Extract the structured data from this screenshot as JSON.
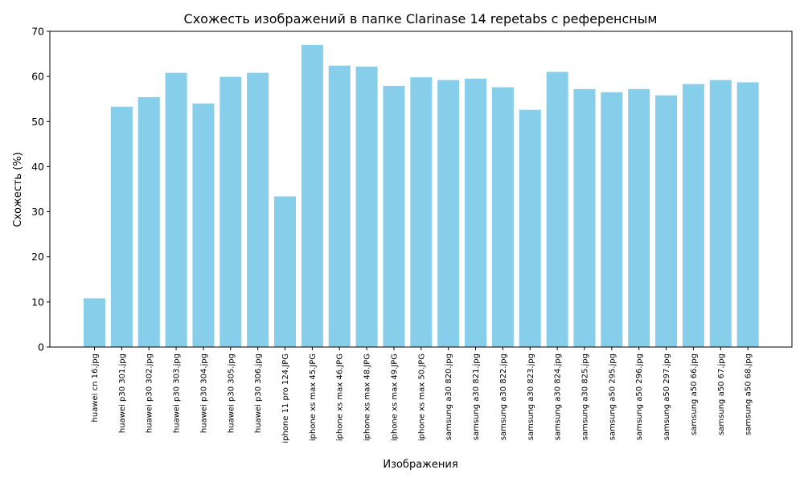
{
  "chart_data": {
    "type": "bar",
    "title": "Схожесть изображений в папке Clarinase 14 repetabs с референсным",
    "xlabel": "Изображения",
    "ylabel": "Схожесть (%)",
    "ylim": [
      0,
      70
    ],
    "yticks": [
      0,
      10,
      20,
      30,
      40,
      50,
      60,
      70
    ],
    "grid": false,
    "bar_color": "#87CEEB",
    "categories": [
      "huawei cn 16.jpg",
      "huawei p30 301.jpg",
      "huawei p30 302.jpg",
      "huawei p30 303.jpg",
      "huawei p30 304.jpg",
      "huawei p30 305.jpg",
      "huawei p30 306.jpg",
      "iphone 11 pro 124.JPG",
      "iphone xs max 45.JPG",
      "iphone xs max 46.JPG",
      "iphone xs max 48.JPG",
      "iphone xs max 49.JPG",
      "iphone xs max 50.JPG",
      "samsung a30 820.jpg",
      "samsung a30 821.jpg",
      "samsung a30 822.jpg",
      "samsung a30 823.jpg",
      "samsung a30 824.jpg",
      "samsung a30 825.jpg",
      "samsung a50 295.jpg",
      "samsung a50 296.jpg",
      "samsung a50 297.jpg",
      "samsung a50 66.jpg",
      "samsung a50 67.jpg",
      "samsung a50 68.jpg"
    ],
    "values": [
      10.8,
      53.3,
      55.4,
      60.8,
      54.0,
      59.9,
      60.8,
      33.4,
      67.0,
      62.4,
      62.2,
      57.9,
      59.8,
      59.2,
      59.5,
      57.6,
      52.6,
      61.0,
      57.2,
      56.5,
      57.2,
      55.8,
      58.3,
      59.2,
      58.7
    ]
  }
}
